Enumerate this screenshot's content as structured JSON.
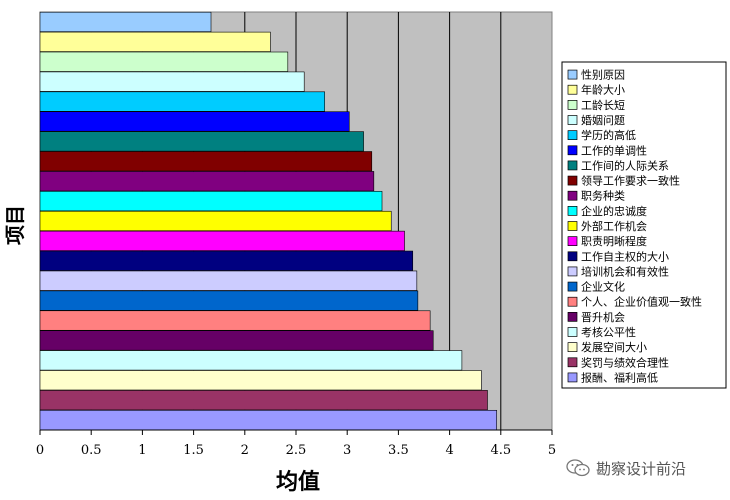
{
  "chart_data": {
    "type": "bar",
    "orientation": "horizontal",
    "xlabel": "均值",
    "ylabel": "项目",
    "xlim": [
      0,
      5
    ],
    "xticks": [
      "0",
      "0.5",
      "1",
      "1.5",
      "2",
      "2.5",
      "3",
      "3.5",
      "4",
      "4.5",
      "5"
    ],
    "grid": true,
    "legend_position": "right",
    "plot_background": "#c0c0c0",
    "categories": [
      "性别原因",
      "年龄大小",
      "工龄长短",
      "婚姻问题",
      "学历的高低",
      "工作的单调性",
      "工作间的人际关系",
      "领导工作要求一致性",
      "职务种类",
      "企业的忠诚度",
      "外部工作机会",
      "职责明晰程度",
      "工作自主权的大小",
      "培训机会和有效性",
      "企业文化",
      "个人、企业价值观一致性",
      "晋升机会",
      "考核公平性",
      "发展空间大小",
      "奖罚与绩效合理性",
      "报酬、福利高低"
    ],
    "values": [
      1.67,
      2.25,
      2.42,
      2.58,
      2.78,
      3.02,
      3.16,
      3.24,
      3.26,
      3.34,
      3.43,
      3.56,
      3.64,
      3.68,
      3.69,
      3.81,
      3.84,
      4.12,
      4.31,
      4.37,
      4.46
    ],
    "colors": [
      "#99ccff",
      "#ffff99",
      "#ccffcc",
      "#ccffff",
      "#00ccff",
      "#0000ff",
      "#008080",
      "#800000",
      "#800080",
      "#00ffff",
      "#ffff00",
      "#ff00ff",
      "#000080",
      "#ccccff",
      "#0066cc",
      "#ff8080",
      "#660066",
      "#ccffff",
      "#ffffcc",
      "#993366",
      "#9999ff"
    ]
  },
  "watermark": {
    "text": "勘察设计前沿",
    "icon": "wechat-icon"
  }
}
